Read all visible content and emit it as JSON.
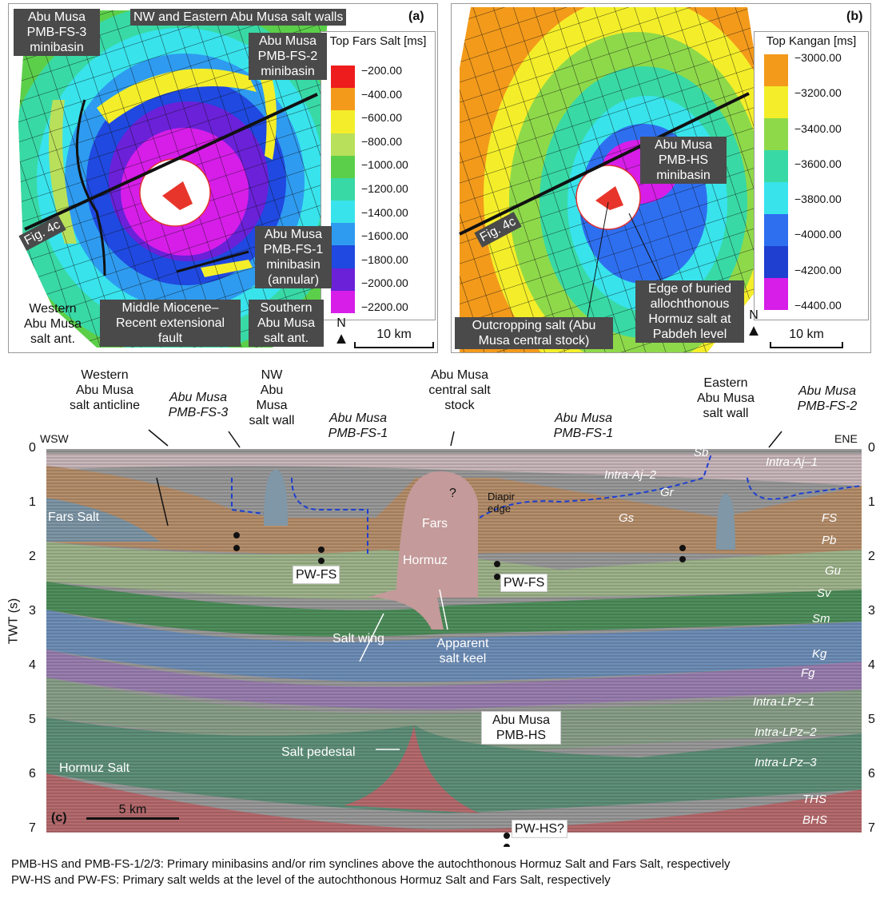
{
  "panel_a": {
    "letter": "(a)",
    "legend_title": "Top Fars Salt [ms]",
    "legend_values": [
      "−200.00",
      "−400.00",
      "−600.00",
      "−800.00",
      "−1000.00",
      "−1200.00",
      "−1400.00",
      "−1600.00",
      "−1800.00",
      "−2000.00",
      "−2200.00"
    ],
    "legend_colors": [
      "#ee1c1c",
      "#f39a1b",
      "#f4ee2a",
      "#b8e05a",
      "#5ccf4a",
      "#38d9a5",
      "#38e3ec",
      "#2e9bf0",
      "#1f49e0",
      "#6a21d8",
      "#d61ee8"
    ],
    "labels": {
      "pmb_fs3": "Abu Musa\nPMB-FS-3\nminibasin",
      "walls": "NW and Eastern Abu Musa salt walls",
      "pmb_fs2": "Abu Musa\nPMB-FS-2\nminibasin",
      "pmb_fs1": "Abu Musa\nPMB-FS-1\nminibasin\n(annular)",
      "western_ant": "Western\nAbu Musa\nsalt ant.",
      "fault": "Middle Miocene–\nRecent extensional\nfault",
      "southern_ant": "Southern\nAbu Musa\nsalt ant.",
      "fig4c": "Fig. 4c",
      "north": "N",
      "scale": "10 km"
    }
  },
  "panel_b": {
    "letter": "(b)",
    "legend_title": "Top Kangan [ms]",
    "legend_values": [
      "−3000.00",
      "−3200.00",
      "−3400.00",
      "−3600.00",
      "−3800.00",
      "−4000.00",
      "−4200.00",
      "−4400.00"
    ],
    "legend_colors": [
      "#f39a1b",
      "#f4ee2a",
      "#8ed94a",
      "#38d9a5",
      "#38e3ec",
      "#2e6ff0",
      "#1f3fd0",
      "#d61ee8"
    ],
    "labels": {
      "pmb_hs": "Abu Musa\nPMB-HS\nminibasin",
      "outcrop": "Outcropping salt (Abu\nMusa central stock)",
      "edge": "Edge of buried\nallochthonous\nHormuz salt at\nPabdeh level",
      "fig4c": "Fig. 4c",
      "north": "N",
      "scale": "10 km"
    }
  },
  "panel_c": {
    "letter": "(c)",
    "y_axis_label": "TWT (s)",
    "y_ticks": [
      "0",
      "1",
      "2",
      "3",
      "4",
      "5",
      "6",
      "7"
    ],
    "wsw": "WSW",
    "ene": "ENE",
    "top_labels": {
      "western": "Western\nAbu Musa\nsalt anticline",
      "fs3": "Abu Musa\nPMB-FS-3",
      "nw_wall": "NW\nAbu\nMusa\nsalt wall",
      "fs1_left": "Abu Musa\nPMB-FS-1",
      "stock": "Abu Musa\ncentral salt\nstock",
      "fs1_right": "Abu Musa\nPMB-FS-1",
      "eastern_wall": "Eastern\nAbu Musa\nsalt wall",
      "fs2": "Abu Musa\nPMB-FS-2"
    },
    "units": [
      "Sb",
      "Intra-Aj–1",
      "Intra-Aj–2",
      "Gr",
      "Gs",
      "FS",
      "Pb",
      "Gu",
      "Sv",
      "Sm",
      "Kg",
      "Fg",
      "Intra-LPz–1",
      "Intra-LPz–2",
      "Intra-LPz–3",
      "THS",
      "BHS"
    ],
    "inner_labels": {
      "fars_salt": "Fars Salt",
      "fars": "Fars",
      "hormuz": "Hormuz",
      "diapir_edge": "Diapir\nedge",
      "question": "?",
      "pw_fs_left": "PW-FS",
      "pw_fs_right": "PW-FS",
      "salt_wing": "Salt wing",
      "salt_keel": "Apparent\nsalt keel",
      "pmb_hs": "Abu Musa\nPMB-HS",
      "salt_pedestal": "Salt pedestal",
      "hormuz_salt": "Hormuz Salt",
      "pw_hs": "PW-HS?",
      "scale": "5 km"
    }
  },
  "caption": {
    "line1": "PMB-HS and PMB-FS-1/2/3: Primary minibasins and/or rim synclines above the autochthonous Hormuz Salt and Fars Salt, respectively",
    "line2": "PW-HS and PW-FS: Primary salt welds at the level of the autochthonous Hormuz Salt and Fars Salt, respectively"
  }
}
